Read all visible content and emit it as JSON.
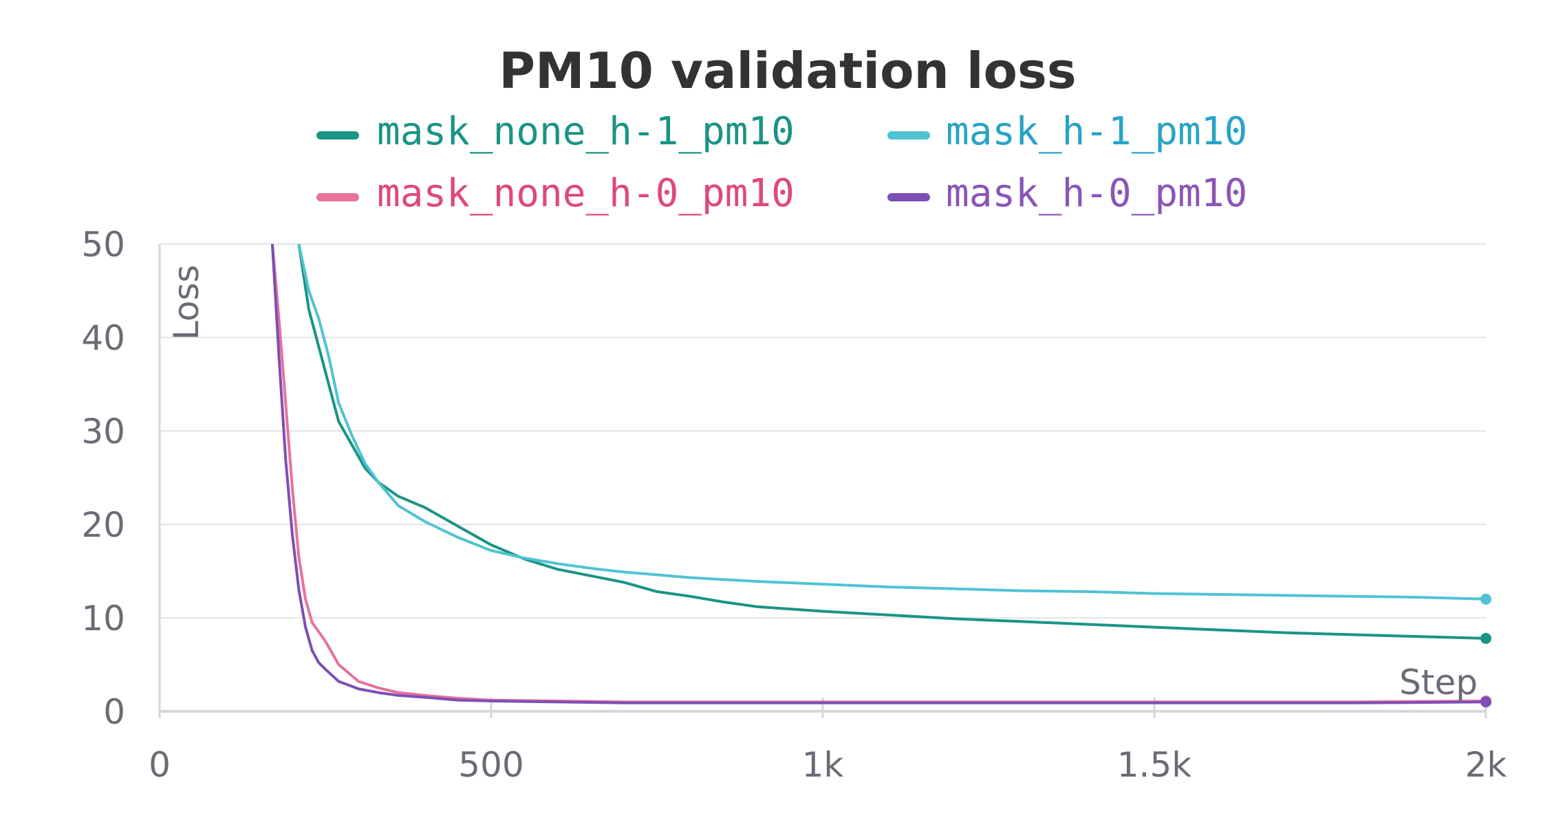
{
  "chart_data": {
    "type": "line",
    "title": "PM10 validation loss",
    "xlabel": "Step",
    "ylabel": "Loss",
    "xlim": [
      0,
      2000
    ],
    "ylim": [
      0,
      50
    ],
    "x_ticks": [
      {
        "value": 0,
        "label": "0"
      },
      {
        "value": 500,
        "label": "500"
      },
      {
        "value": 1000,
        "label": "1k"
      },
      {
        "value": 1500,
        "label": "1.5k"
      },
      {
        "value": 2000,
        "label": "2k"
      }
    ],
    "y_ticks": [
      {
        "value": 0,
        "label": "0"
      },
      {
        "value": 10,
        "label": "10"
      },
      {
        "value": 20,
        "label": "20"
      },
      {
        "value": 30,
        "label": "30"
      },
      {
        "value": 40,
        "label": "40"
      },
      {
        "value": 50,
        "label": "50"
      }
    ],
    "grid": true,
    "legend_position": "top-center",
    "series": [
      {
        "name": "mask_none_h-1_pm10",
        "color": "#1a9484",
        "legend_text_color": "#1a9484",
        "x": [
          210,
          225,
          240,
          255,
          270,
          290,
          310,
          330,
          360,
          400,
          450,
          500,
          550,
          600,
          650,
          700,
          750,
          800,
          850,
          900,
          1000,
          1100,
          1200,
          1300,
          1400,
          1500,
          1600,
          1700,
          1800,
          1900,
          2000
        ],
        "y": [
          50,
          43,
          39,
          35,
          31,
          28.5,
          26,
          24.5,
          23,
          21.8,
          19.8,
          17.8,
          16.3,
          15.2,
          14.5,
          13.8,
          12.8,
          12.3,
          11.7,
          11.2,
          10.7,
          10.3,
          9.9,
          9.6,
          9.3,
          9.0,
          8.7,
          8.4,
          8.2,
          8.0,
          7.8
        ]
      },
      {
        "name": "mask_h-1_pm10",
        "color": "#4fc3d3",
        "legend_text_color": "#29a3c6",
        "x": [
          210,
          225,
          240,
          255,
          270,
          290,
          310,
          330,
          360,
          400,
          450,
          500,
          550,
          600,
          650,
          700,
          750,
          800,
          850,
          900,
          1000,
          1100,
          1200,
          1300,
          1400,
          1500,
          1600,
          1700,
          1800,
          1900,
          2000
        ],
        "y": [
          50,
          45,
          42,
          38,
          33,
          29.5,
          26.5,
          24.5,
          22,
          20.3,
          18.6,
          17.2,
          16.4,
          15.8,
          15.3,
          14.9,
          14.6,
          14.3,
          14.1,
          13.9,
          13.6,
          13.3,
          13.1,
          12.9,
          12.8,
          12.6,
          12.5,
          12.4,
          12.3,
          12.2,
          12.0
        ]
      },
      {
        "name": "mask_none_h-0_pm10",
        "color": "#e8729a",
        "legend_text_color": "#e0487a",
        "x": [
          170,
          180,
          190,
          200,
          210,
          220,
          230,
          240,
          250,
          270,
          300,
          330,
          360,
          400,
          450,
          500,
          600,
          700,
          800,
          900,
          1000,
          1200,
          1400,
          1600,
          1800,
          2000
        ],
        "y": [
          50,
          42,
          33,
          24,
          16.5,
          12,
          9.5,
          8.5,
          7.5,
          5,
          3.2,
          2.5,
          2.0,
          1.7,
          1.4,
          1.2,
          1.1,
          1.0,
          1.0,
          1.0,
          1.0,
          1.0,
          1.0,
          1.0,
          1.0,
          1.1
        ]
      },
      {
        "name": "mask_h-0_pm10",
        "color": "#7d4fb5",
        "legend_text_color": "#8a55b8",
        "x": [
          170,
          180,
          190,
          200,
          210,
          220,
          230,
          240,
          250,
          270,
          300,
          330,
          360,
          400,
          450,
          500,
          600,
          700,
          800,
          900,
          1000,
          1200,
          1400,
          1600,
          1800,
          2000
        ],
        "y": [
          50,
          38,
          27,
          19,
          13,
          9,
          6.5,
          5.2,
          4.5,
          3.2,
          2.4,
          2.0,
          1.7,
          1.5,
          1.2,
          1.1,
          1.0,
          0.9,
          0.9,
          0.9,
          0.9,
          0.9,
          0.9,
          0.9,
          0.9,
          1.0
        ]
      }
    ]
  }
}
